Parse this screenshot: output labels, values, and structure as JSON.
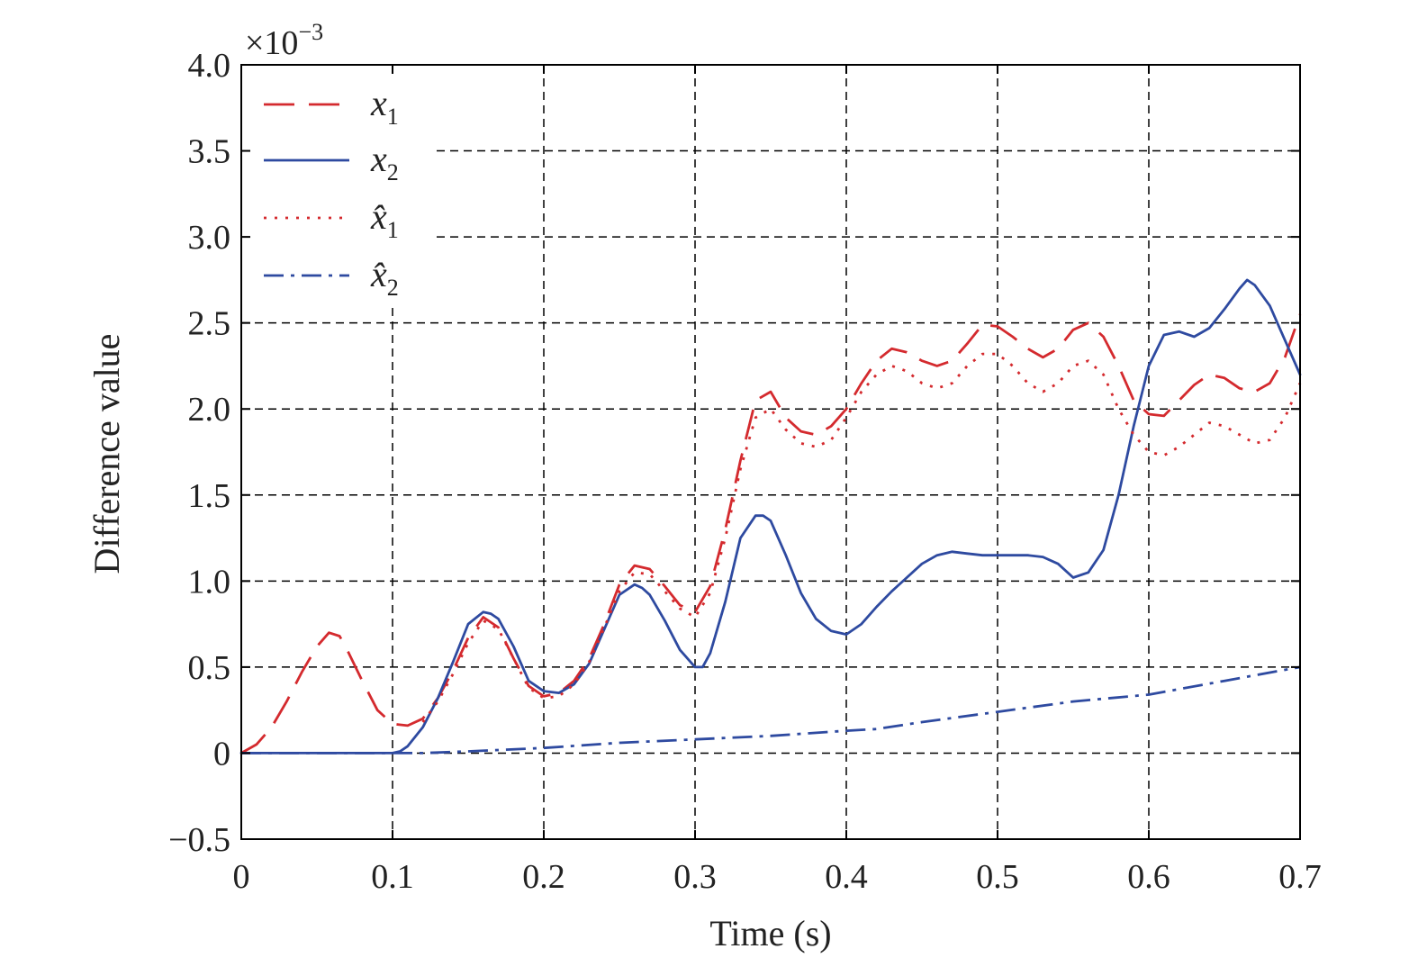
{
  "chart_data": {
    "type": "line",
    "title": "",
    "xlabel": "Time (s)",
    "ylabel": "Difference value",
    "exponent_label": "×10",
    "exponent_power": "−3",
    "xlim": [
      0,
      0.7
    ],
    "ylim": [
      -0.5,
      4.0
    ],
    "x_ticks": [
      0,
      0.1,
      0.2,
      0.3,
      0.4,
      0.5,
      0.6,
      0.7
    ],
    "x_tick_labels": [
      "0",
      "0.1",
      "0.2",
      "0.3",
      "0.4",
      "0.5",
      "0.6",
      "0.7"
    ],
    "y_ticks": [
      -0.5,
      0,
      0.5,
      1.0,
      1.5,
      2.0,
      2.5,
      3.0,
      3.5,
      4.0
    ],
    "y_tick_labels": [
      "−0.5",
      "0",
      "0.5",
      "1.0",
      "1.5",
      "2.0",
      "2.5",
      "3.0",
      "3.5",
      "4.0"
    ],
    "grid": true,
    "legend_position": "top-left",
    "series": [
      {
        "name": "x",
        "subscript": "1",
        "hat": false,
        "color": "#d42a2e",
        "style": "dashed",
        "x": [
          0,
          0.01,
          0.02,
          0.03,
          0.04,
          0.05,
          0.058,
          0.065,
          0.07,
          0.08,
          0.09,
          0.1,
          0.11,
          0.12,
          0.13,
          0.14,
          0.15,
          0.16,
          0.17,
          0.18,
          0.19,
          0.2,
          0.21,
          0.22,
          0.23,
          0.24,
          0.25,
          0.26,
          0.27,
          0.28,
          0.29,
          0.3,
          0.31,
          0.32,
          0.33,
          0.34,
          0.35,
          0.36,
          0.37,
          0.38,
          0.39,
          0.4,
          0.41,
          0.42,
          0.43,
          0.44,
          0.45,
          0.46,
          0.47,
          0.48,
          0.49,
          0.5,
          0.51,
          0.52,
          0.53,
          0.54,
          0.55,
          0.56,
          0.57,
          0.58,
          0.59,
          0.6,
          0.61,
          0.62,
          0.63,
          0.64,
          0.65,
          0.66,
          0.67,
          0.68,
          0.69,
          0.7
        ],
        "y": [
          0,
          0.05,
          0.15,
          0.3,
          0.47,
          0.62,
          0.7,
          0.68,
          0.6,
          0.42,
          0.25,
          0.17,
          0.16,
          0.2,
          0.32,
          0.48,
          0.67,
          0.79,
          0.73,
          0.55,
          0.39,
          0.33,
          0.35,
          0.42,
          0.55,
          0.75,
          0.98,
          1.09,
          1.07,
          0.97,
          0.86,
          0.82,
          0.97,
          1.3,
          1.7,
          2.05,
          2.1,
          1.95,
          1.87,
          1.85,
          1.9,
          2.0,
          2.15,
          2.28,
          2.35,
          2.33,
          2.28,
          2.25,
          2.28,
          2.38,
          2.49,
          2.48,
          2.42,
          2.35,
          2.3,
          2.35,
          2.46,
          2.5,
          2.42,
          2.25,
          2.05,
          1.97,
          1.96,
          2.05,
          2.14,
          2.2,
          2.18,
          2.12,
          2.1,
          2.15,
          2.3,
          2.55
        ]
      },
      {
        "name": "x",
        "subscript": "2",
        "hat": false,
        "color": "#2e4aa0",
        "style": "solid",
        "x": [
          0,
          0.05,
          0.1,
          0.105,
          0.11,
          0.12,
          0.13,
          0.14,
          0.15,
          0.16,
          0.165,
          0.17,
          0.18,
          0.19,
          0.2,
          0.21,
          0.22,
          0.23,
          0.24,
          0.25,
          0.26,
          0.265,
          0.27,
          0.28,
          0.29,
          0.3,
          0.305,
          0.31,
          0.32,
          0.33,
          0.34,
          0.345,
          0.35,
          0.36,
          0.37,
          0.38,
          0.39,
          0.4,
          0.41,
          0.42,
          0.43,
          0.44,
          0.45,
          0.46,
          0.47,
          0.48,
          0.49,
          0.5,
          0.51,
          0.52,
          0.53,
          0.54,
          0.55,
          0.56,
          0.57,
          0.58,
          0.59,
          0.6,
          0.61,
          0.62,
          0.63,
          0.64,
          0.65,
          0.66,
          0.665,
          0.67,
          0.68,
          0.69,
          0.7
        ],
        "y": [
          0,
          0,
          0,
          0.01,
          0.04,
          0.15,
          0.32,
          0.53,
          0.75,
          0.82,
          0.81,
          0.78,
          0.62,
          0.42,
          0.36,
          0.35,
          0.4,
          0.52,
          0.72,
          0.92,
          0.98,
          0.96,
          0.92,
          0.77,
          0.6,
          0.5,
          0.5,
          0.58,
          0.88,
          1.25,
          1.38,
          1.38,
          1.35,
          1.15,
          0.93,
          0.78,
          0.71,
          0.69,
          0.75,
          0.85,
          0.94,
          1.02,
          1.1,
          1.15,
          1.17,
          1.16,
          1.15,
          1.15,
          1.15,
          1.15,
          1.14,
          1.1,
          1.02,
          1.05,
          1.18,
          1.5,
          1.9,
          2.25,
          2.43,
          2.45,
          2.42,
          2.47,
          2.58,
          2.7,
          2.75,
          2.72,
          2.6,
          2.4,
          2.2
        ]
      },
      {
        "name": "x̂",
        "subscript": "1",
        "hat": true,
        "color": "#d42a2e",
        "style": "dotted",
        "x": [
          0.12,
          0.13,
          0.14,
          0.15,
          0.16,
          0.17,
          0.18,
          0.19,
          0.2,
          0.21,
          0.22,
          0.23,
          0.24,
          0.25,
          0.26,
          0.27,
          0.28,
          0.29,
          0.3,
          0.31,
          0.32,
          0.33,
          0.34,
          0.35,
          0.36,
          0.37,
          0.38,
          0.39,
          0.4,
          0.41,
          0.42,
          0.43,
          0.44,
          0.45,
          0.46,
          0.47,
          0.48,
          0.49,
          0.5,
          0.51,
          0.52,
          0.53,
          0.54,
          0.55,
          0.56,
          0.57,
          0.58,
          0.59,
          0.6,
          0.61,
          0.62,
          0.63,
          0.64,
          0.65,
          0.66,
          0.67,
          0.68,
          0.69,
          0.7
        ],
        "y": [
          0.18,
          0.3,
          0.46,
          0.64,
          0.77,
          0.72,
          0.55,
          0.38,
          0.32,
          0.33,
          0.4,
          0.53,
          0.73,
          0.94,
          1.05,
          1.04,
          0.94,
          0.84,
          0.79,
          0.93,
          1.25,
          1.65,
          1.95,
          2.0,
          1.88,
          1.8,
          1.78,
          1.82,
          1.95,
          2.1,
          2.2,
          2.25,
          2.22,
          2.15,
          2.12,
          2.15,
          2.25,
          2.32,
          2.32,
          2.25,
          2.15,
          2.1,
          2.15,
          2.25,
          2.28,
          2.2,
          2.0,
          1.85,
          1.75,
          1.73,
          1.78,
          1.85,
          1.92,
          1.9,
          1.85,
          1.8,
          1.82,
          1.95,
          2.15
        ]
      },
      {
        "name": "x̂",
        "subscript": "2",
        "hat": true,
        "color": "#2e4aa0",
        "style": "dashdot",
        "x": [
          0,
          0.1,
          0.12,
          0.15,
          0.2,
          0.25,
          0.3,
          0.35,
          0.4,
          0.42,
          0.45,
          0.5,
          0.55,
          0.6,
          0.65,
          0.7
        ],
        "y": [
          0,
          0,
          0,
          0.01,
          0.03,
          0.06,
          0.08,
          0.1,
          0.13,
          0.14,
          0.18,
          0.24,
          0.3,
          0.34,
          0.42,
          0.5
        ]
      }
    ]
  }
}
